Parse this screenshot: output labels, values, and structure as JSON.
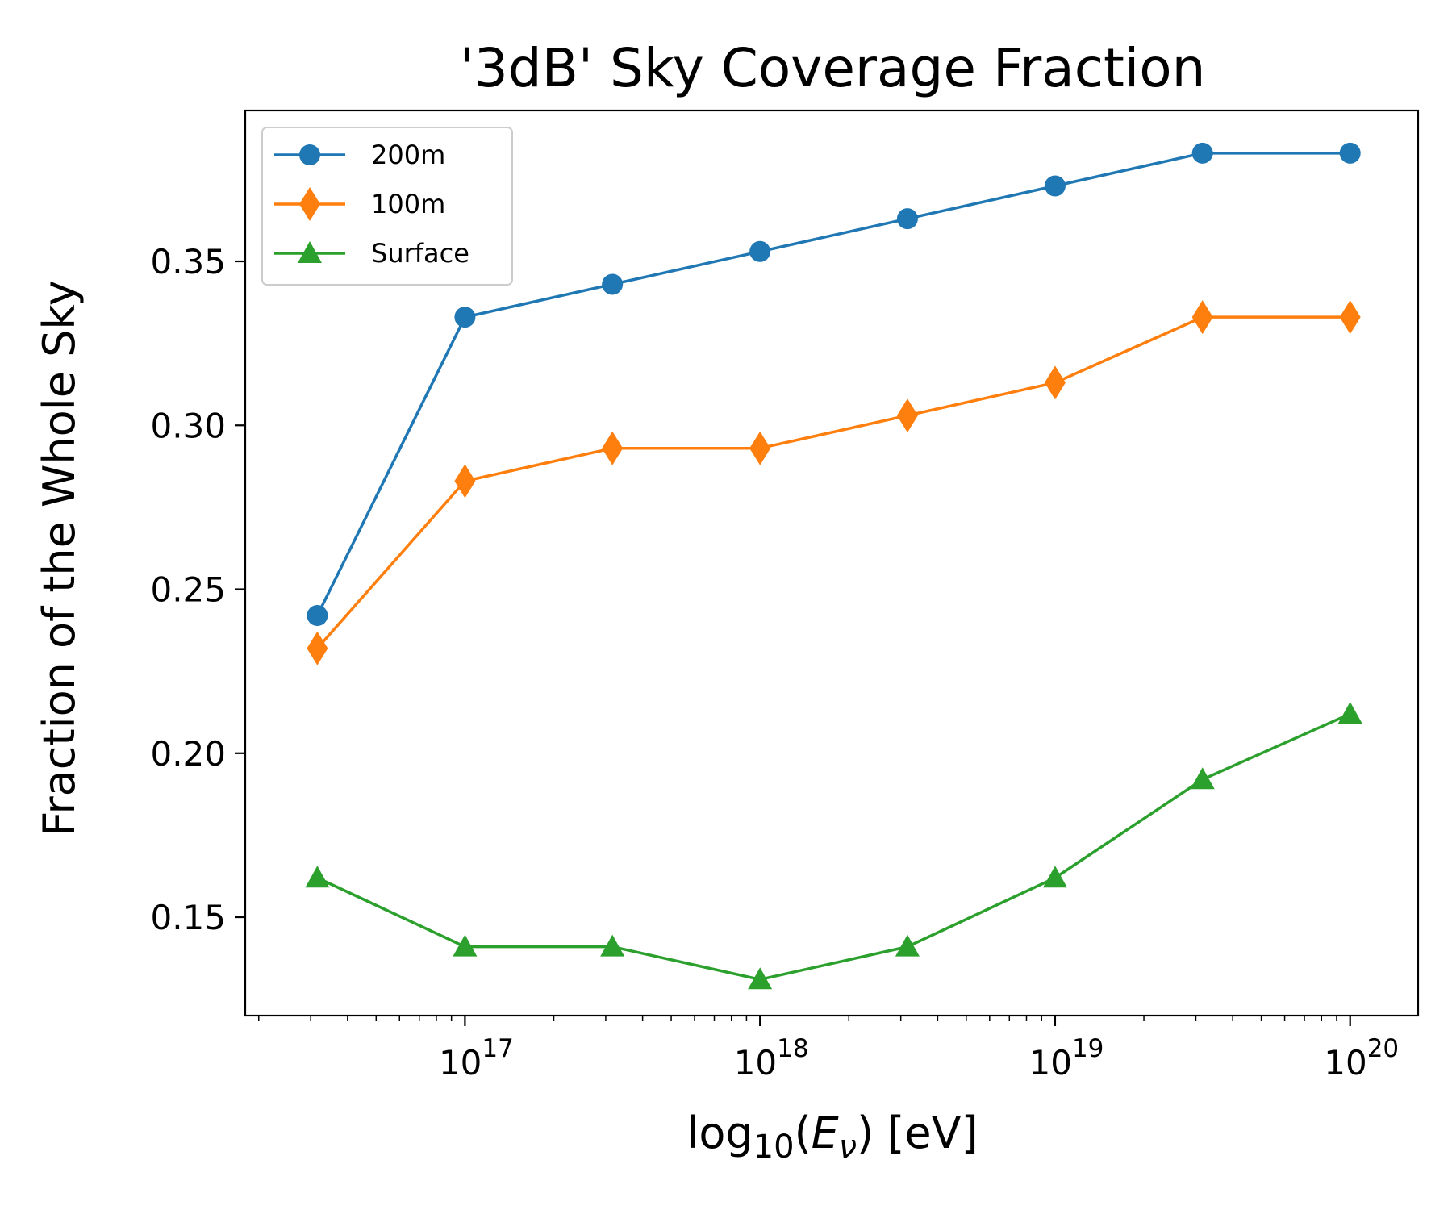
{
  "chart_data": {
    "type": "line",
    "title": "'3dB' Sky Coverage Fraction",
    "xlabel": "log10(Eν) [eV]",
    "ylabel": "Fraction of the Whole Sky",
    "xscale": "log",
    "x": [
      3.16e+16,
      1e+17,
      3.16e+17,
      1e+18,
      3.16e+18,
      1e+19,
      3.16e+19,
      1e+20
    ],
    "xlim": [
      1.8e+16,
      1.7e+20
    ],
    "ylim": [
      0.12,
      0.396
    ],
    "x_ticks": [
      {
        "value": 1e+17,
        "base": "10",
        "exp": "17"
      },
      {
        "value": 1e+18,
        "base": "10",
        "exp": "18"
      },
      {
        "value": 1e+19,
        "base": "10",
        "exp": "19"
      },
      {
        "value": 1e+20,
        "base": "10",
        "exp": "20"
      }
    ],
    "y_ticks": [
      {
        "value": 0.15,
        "label": "0.15"
      },
      {
        "value": 0.2,
        "label": "0.20"
      },
      {
        "value": 0.25,
        "label": "0.25"
      },
      {
        "value": 0.3,
        "label": "0.30"
      },
      {
        "value": 0.35,
        "label": "0.35"
      }
    ],
    "series": [
      {
        "name": "200m",
        "color": "#1f77b4",
        "marker": "circle",
        "values": [
          0.242,
          0.333,
          0.343,
          0.353,
          0.363,
          0.373,
          0.383,
          0.383
        ]
      },
      {
        "name": "100m",
        "color": "#ff7f0e",
        "marker": "diamond",
        "values": [
          0.232,
          0.283,
          0.293,
          0.293,
          0.303,
          0.313,
          0.333,
          0.333
        ]
      },
      {
        "name": "Surface",
        "color": "#2ca02c",
        "marker": "triangle",
        "values": [
          0.162,
          0.141,
          0.141,
          0.131,
          0.141,
          0.162,
          0.192,
          0.212
        ]
      }
    ],
    "legend": "top-left",
    "grid": false
  }
}
